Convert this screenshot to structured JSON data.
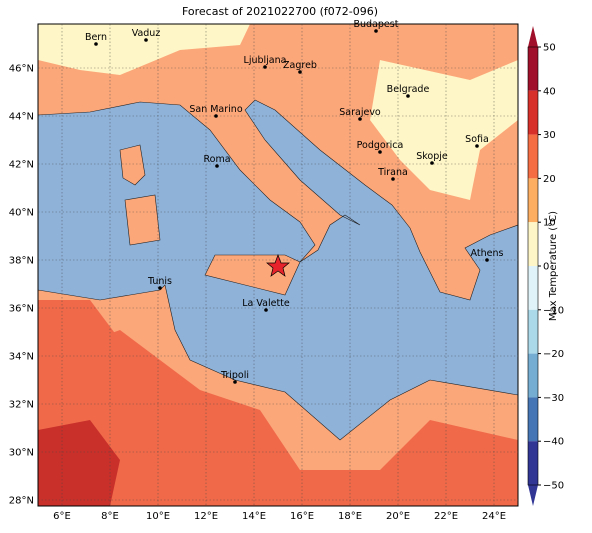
{
  "title": "Forecast of 2021022700 (f072-096)",
  "cities": [
    "Bern",
    "Vaduz",
    "Budapest",
    "Ljubljana",
    "Zagreb",
    "Belgrade",
    "San Marino",
    "Sarajevo",
    "Sofia",
    "Podgorica",
    "Skopje",
    "Roma",
    "Tirana",
    "Athens",
    "Tunis",
    "La Valette",
    "Tripoli"
  ],
  "xticks": [
    {
      "value": 6,
      "label": "6°E"
    },
    {
      "value": 8,
      "label": "8°E"
    },
    {
      "value": 10,
      "label": "10°E"
    },
    {
      "value": 12,
      "label": "12°E"
    },
    {
      "value": 14,
      "label": "14°E"
    },
    {
      "value": 16,
      "label": "16°E"
    },
    {
      "value": 18,
      "label": "18°E"
    },
    {
      "value": 20,
      "label": "20°E"
    },
    {
      "value": 22,
      "label": "22°E"
    },
    {
      "value": 24,
      "label": "24°E"
    }
  ],
  "yticks": [
    {
      "value": 28,
      "label": "28°N"
    },
    {
      "value": 30,
      "label": "30°N"
    },
    {
      "value": 32,
      "label": "32°N"
    },
    {
      "value": 34,
      "label": "34°N"
    },
    {
      "value": 36,
      "label": "36°N"
    },
    {
      "value": 38,
      "label": "38°N"
    },
    {
      "value": 40,
      "label": "40°N"
    },
    {
      "value": 42,
      "label": "42°N"
    },
    {
      "value": 44,
      "label": "44°N"
    },
    {
      "value": 46,
      "label": "46°N"
    }
  ],
  "colorbar": {
    "label": "Max Temperature (°C)",
    "ticks": [
      50,
      40,
      30,
      20,
      10,
      0,
      {
        "value": -10,
        "label": "−10"
      },
      {
        "value": -20,
        "label": "−20"
      },
      {
        "value": -30,
        "label": "−30"
      },
      {
        "value": -40,
        "label": "−40"
      },
      {
        "value": -50,
        "label": "−50"
      }
    ],
    "colors": [
      "#a0102a",
      "#d7302b",
      "#f46d43",
      "#fdae61",
      "#fef6c6",
      "#e0f3f8",
      "#abd9e9",
      "#74add1",
      "#4575b4",
      "#313695"
    ]
  }
}
